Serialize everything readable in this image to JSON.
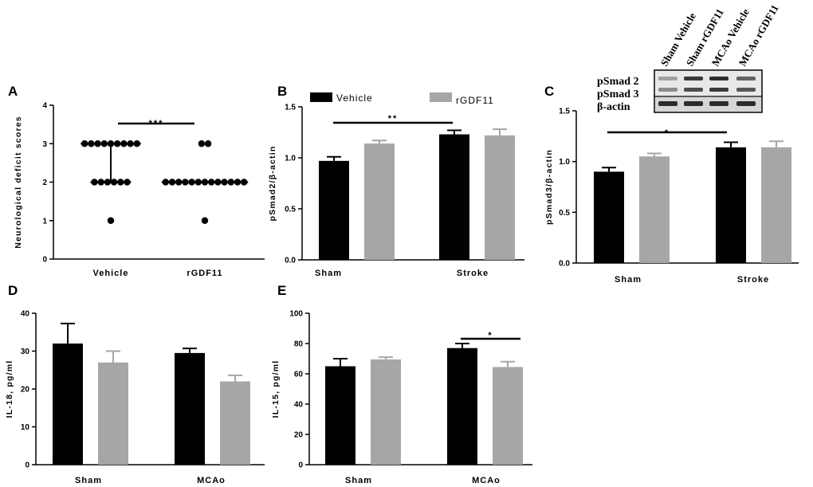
{
  "colors": {
    "vehicle": "#000000",
    "rgdf11": "#a6a6a6",
    "axis": "#000000"
  },
  "legend": {
    "vehicle": "Vehicle",
    "rgdf11": "rGDF11"
  },
  "panels": {
    "A": {
      "letter": "A",
      "sig": "***"
    },
    "B": {
      "letter": "B",
      "sig": "**"
    },
    "C": {
      "letter": "C",
      "sig": "*"
    },
    "D": {
      "letter": "D"
    },
    "E": {
      "letter": "E",
      "sig": "*"
    }
  },
  "blot": {
    "lanes": [
      "Sham Vehicle",
      "Sham rGDF11",
      "MCAo Vehicle",
      "MCAo rGDF11"
    ],
    "rows": [
      "pSmad 2",
      "pSmad 3",
      "β-actin"
    ]
  },
  "chart_data": [
    {
      "id": "A",
      "type": "scatter",
      "ylabel": "Neurological deficit scores",
      "ylim": [
        0,
        4
      ],
      "yticks": [
        "0",
        "1",
        "2",
        "3",
        "4"
      ],
      "categories": [
        "Vehicle",
        "rGDF11"
      ],
      "series": [
        {
          "name": "Vehicle",
          "points": [
            3,
            3,
            3,
            3,
            3,
            3,
            3,
            3,
            3,
            2,
            2,
            2,
            2,
            2,
            2,
            1
          ],
          "median": 3,
          "range": [
            2,
            3
          ]
        },
        {
          "name": "rGDF11",
          "points": [
            3,
            3,
            2,
            2,
            2,
            2,
            2,
            2,
            2,
            2,
            2,
            2,
            2,
            2,
            2,
            1
          ],
          "median": 2
        }
      ],
      "significance": "***"
    },
    {
      "id": "B",
      "type": "bar",
      "ylabel": "pSmad2/β-actin",
      "ylim": [
        0,
        1.5
      ],
      "yticks": [
        "0.0",
        "0.5",
        "1.0",
        "1.5"
      ],
      "categories": [
        "Sham",
        "Stroke"
      ],
      "series": [
        {
          "name": "Vehicle",
          "values": [
            0.97,
            1.23
          ],
          "errors": [
            0.04,
            0.04
          ]
        },
        {
          "name": "rGDF11",
          "values": [
            1.14,
            1.22
          ],
          "errors": [
            0.03,
            0.06
          ]
        }
      ],
      "significance": "**"
    },
    {
      "id": "C",
      "type": "bar",
      "ylabel": "pSmad3/β-actin",
      "ylim": [
        0,
        1.5
      ],
      "yticks": [
        "0.0",
        "0.5",
        "1.0",
        "1.5"
      ],
      "categories": [
        "Sham",
        "Stroke"
      ],
      "series": [
        {
          "name": "Vehicle",
          "values": [
            0.9,
            1.14
          ],
          "errors": [
            0.04,
            0.05
          ]
        },
        {
          "name": "rGDF11",
          "values": [
            1.05,
            1.14
          ],
          "errors": [
            0.03,
            0.06
          ]
        }
      ],
      "significance": "*"
    },
    {
      "id": "D",
      "type": "bar",
      "ylabel": "IL-18, pg/ml",
      "ylim": [
        0,
        40
      ],
      "yticks": [
        "0",
        "10",
        "20",
        "30",
        "40"
      ],
      "categories": [
        "Sham",
        "MCAo"
      ],
      "series": [
        {
          "name": "Vehicle",
          "values": [
            32,
            29.5
          ],
          "errors": [
            5.3,
            1.2
          ]
        },
        {
          "name": "rGDF11",
          "values": [
            27,
            22
          ],
          "errors": [
            3,
            1.6
          ]
        }
      ]
    },
    {
      "id": "E",
      "type": "bar",
      "ylabel": "IL-15, pg/ml",
      "ylim": [
        0,
        100
      ],
      "yticks": [
        "0",
        "20",
        "40",
        "60",
        "80",
        "100"
      ],
      "categories": [
        "Sham",
        "MCAo"
      ],
      "series": [
        {
          "name": "Vehicle",
          "values": [
            65,
            77
          ],
          "errors": [
            5,
            3
          ]
        },
        {
          "name": "rGDF11",
          "values": [
            69.5,
            64.5
          ],
          "errors": [
            1.5,
            3.5
          ]
        }
      ],
      "significance": "*"
    }
  ]
}
